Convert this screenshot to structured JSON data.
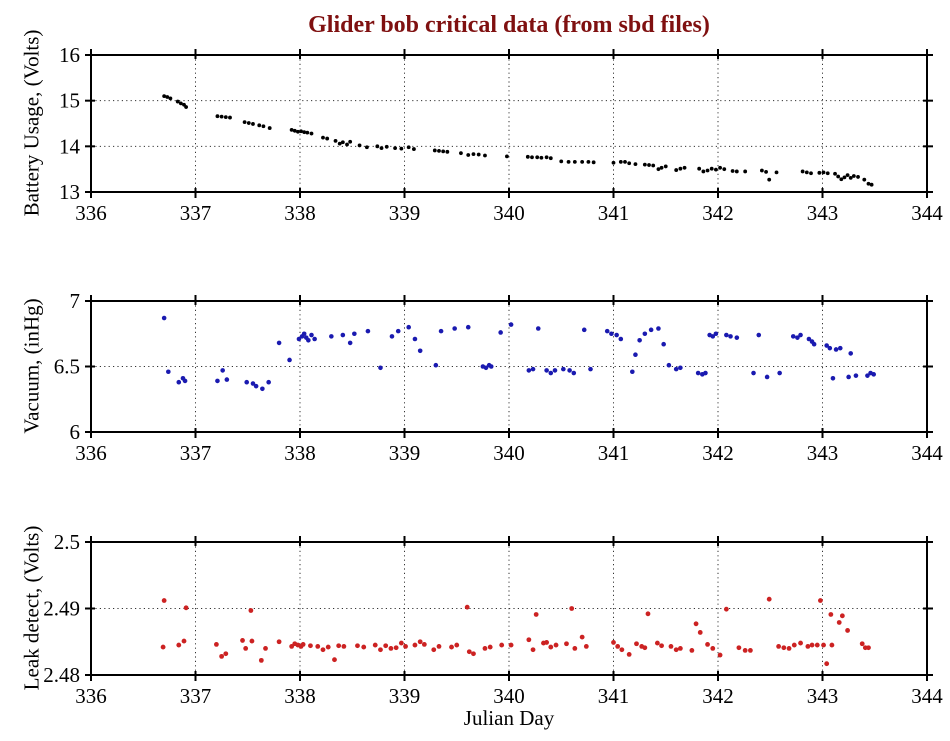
{
  "title": {
    "text": "Glider bob critical data (from sbd files)",
    "color": "#7f1010"
  },
  "xlabel": "Julian Day",
  "axis_color": "#000000",
  "grid_color": "#333333",
  "chart_data": [
    {
      "type": "scatter",
      "name": "battery-usage",
      "ylabel": "Battery Usage, (Volts)",
      "xlim": [
        336,
        344
      ],
      "ylim": [
        13,
        16
      ],
      "xticks": [
        336,
        337,
        338,
        339,
        340,
        341,
        342,
        343,
        344
      ],
      "xtick_labels": [
        "336",
        "337",
        "338",
        "339",
        "340",
        "341",
        "342",
        "343",
        "344"
      ],
      "yticks": [
        13,
        14,
        15,
        16
      ],
      "ytick_labels": [
        "13",
        "14",
        "15",
        "16"
      ],
      "grid": "dotted",
      "color": "#000000",
      "marker_radius": 1.9,
      "points": [
        [
          336.7,
          15.1
        ],
        [
          336.73,
          15.08
        ],
        [
          336.76,
          15.05
        ],
        [
          336.83,
          14.98
        ],
        [
          336.86,
          14.94
        ],
        [
          336.89,
          14.91
        ],
        [
          336.91,
          14.86
        ],
        [
          337.21,
          14.66
        ],
        [
          337.25,
          14.65
        ],
        [
          337.29,
          14.64
        ],
        [
          337.33,
          14.63
        ],
        [
          337.47,
          14.53
        ],
        [
          337.51,
          14.51
        ],
        [
          337.55,
          14.49
        ],
        [
          337.61,
          14.46
        ],
        [
          337.65,
          14.44
        ],
        [
          337.71,
          14.4
        ],
        [
          337.92,
          14.36
        ],
        [
          337.95,
          14.34
        ],
        [
          337.98,
          14.32
        ],
        [
          338.01,
          14.33
        ],
        [
          338.04,
          14.31
        ],
        [
          338.07,
          14.3
        ],
        [
          338.11,
          14.28
        ],
        [
          338.22,
          14.19
        ],
        [
          338.26,
          14.17
        ],
        [
          338.34,
          14.12
        ],
        [
          338.38,
          14.06
        ],
        [
          338.41,
          14.09
        ],
        [
          338.45,
          14.04
        ],
        [
          338.48,
          14.1
        ],
        [
          338.57,
          14.02
        ],
        [
          338.64,
          13.98
        ],
        [
          338.74,
          14.0
        ],
        [
          338.78,
          13.96
        ],
        [
          338.83,
          13.99
        ],
        [
          338.91,
          13.96
        ],
        [
          338.97,
          13.95
        ],
        [
          339.04,
          13.98
        ],
        [
          339.09,
          13.94
        ],
        [
          339.29,
          13.91
        ],
        [
          339.33,
          13.9
        ],
        [
          339.37,
          13.89
        ],
        [
          339.41,
          13.88
        ],
        [
          339.54,
          13.85
        ],
        [
          339.61,
          13.81
        ],
        [
          339.66,
          13.83
        ],
        [
          339.71,
          13.82
        ],
        [
          339.77,
          13.8
        ],
        [
          339.98,
          13.78
        ],
        [
          340.18,
          13.77
        ],
        [
          340.22,
          13.76
        ],
        [
          340.27,
          13.76
        ],
        [
          340.31,
          13.75
        ],
        [
          340.36,
          13.76
        ],
        [
          340.4,
          13.74
        ],
        [
          340.5,
          13.67
        ],
        [
          340.57,
          13.66
        ],
        [
          340.63,
          13.66
        ],
        [
          340.7,
          13.66
        ],
        [
          340.76,
          13.66
        ],
        [
          340.81,
          13.65
        ],
        [
          341.0,
          13.64
        ],
        [
          341.07,
          13.66
        ],
        [
          341.11,
          13.66
        ],
        [
          341.15,
          13.63
        ],
        [
          341.21,
          13.61
        ],
        [
          341.3,
          13.6
        ],
        [
          341.34,
          13.59
        ],
        [
          341.38,
          13.58
        ],
        [
          341.43,
          13.5
        ],
        [
          341.46,
          13.53
        ],
        [
          341.5,
          13.56
        ],
        [
          341.6,
          13.48
        ],
        [
          341.64,
          13.51
        ],
        [
          341.68,
          13.53
        ],
        [
          341.82,
          13.51
        ],
        [
          341.86,
          13.45
        ],
        [
          341.9,
          13.47
        ],
        [
          341.94,
          13.51
        ],
        [
          341.98,
          13.49
        ],
        [
          342.02,
          13.53
        ],
        [
          342.06,
          13.5
        ],
        [
          342.14,
          13.46
        ],
        [
          342.18,
          13.45
        ],
        [
          342.26,
          13.45
        ],
        [
          342.42,
          13.47
        ],
        [
          342.46,
          13.44
        ],
        [
          342.49,
          13.27
        ],
        [
          342.56,
          13.43
        ],
        [
          342.81,
          13.45
        ],
        [
          342.85,
          13.43
        ],
        [
          342.89,
          13.41
        ],
        [
          342.97,
          13.42
        ],
        [
          343.01,
          13.43
        ],
        [
          343.05,
          13.41
        ],
        [
          343.12,
          13.4
        ],
        [
          343.15,
          13.34
        ],
        [
          343.18,
          13.28
        ],
        [
          343.21,
          13.32
        ],
        [
          343.24,
          13.37
        ],
        [
          343.27,
          13.31
        ],
        [
          343.3,
          13.35
        ],
        [
          343.34,
          13.33
        ],
        [
          343.4,
          13.27
        ],
        [
          343.44,
          13.18
        ],
        [
          343.47,
          13.16
        ]
      ]
    },
    {
      "type": "scatter",
      "name": "vacuum",
      "ylabel": "Vacuum, (inHg)",
      "xlim": [
        336,
        344
      ],
      "ylim": [
        6,
        7
      ],
      "xticks": [
        336,
        337,
        338,
        339,
        340,
        341,
        342,
        343,
        344
      ],
      "xtick_labels": [
        "336",
        "337",
        "338",
        "339",
        "340",
        "341",
        "342",
        "343",
        "344"
      ],
      "yticks": [
        6,
        6.5,
        7
      ],
      "ytick_labels": [
        "6",
        "6.5",
        "7"
      ],
      "grid": "dotted",
      "color": "#1a1ab0",
      "marker_radius": 2.3,
      "points": [
        [
          336.7,
          6.87
        ],
        [
          336.74,
          6.46
        ],
        [
          336.84,
          6.38
        ],
        [
          336.88,
          6.41
        ],
        [
          336.9,
          6.39
        ],
        [
          337.21,
          6.39
        ],
        [
          337.26,
          6.47
        ],
        [
          337.3,
          6.4
        ],
        [
          337.49,
          6.38
        ],
        [
          337.55,
          6.37
        ],
        [
          337.58,
          6.35
        ],
        [
          337.64,
          6.33
        ],
        [
          337.7,
          6.38
        ],
        [
          337.8,
          6.68
        ],
        [
          337.9,
          6.55
        ],
        [
          337.99,
          6.71
        ],
        [
          338.02,
          6.73
        ],
        [
          338.04,
          6.75
        ],
        [
          338.06,
          6.72
        ],
        [
          338.08,
          6.7
        ],
        [
          338.11,
          6.74
        ],
        [
          338.14,
          6.71
        ],
        [
          338.3,
          6.73
        ],
        [
          338.41,
          6.74
        ],
        [
          338.48,
          6.68
        ],
        [
          338.52,
          6.75
        ],
        [
          338.65,
          6.77
        ],
        [
          338.77,
          6.49
        ],
        [
          338.88,
          6.73
        ],
        [
          338.94,
          6.77
        ],
        [
          339.04,
          6.8
        ],
        [
          339.1,
          6.71
        ],
        [
          339.15,
          6.62
        ],
        [
          339.3,
          6.51
        ],
        [
          339.35,
          6.77
        ],
        [
          339.48,
          6.79
        ],
        [
          339.61,
          6.8
        ],
        [
          339.75,
          6.5
        ],
        [
          339.78,
          6.49
        ],
        [
          339.81,
          6.51
        ],
        [
          339.83,
          6.5
        ],
        [
          339.92,
          6.76
        ],
        [
          340.02,
          6.82
        ],
        [
          340.19,
          6.47
        ],
        [
          340.23,
          6.48
        ],
        [
          340.28,
          6.79
        ],
        [
          340.36,
          6.47
        ],
        [
          340.4,
          6.45
        ],
        [
          340.44,
          6.47
        ],
        [
          340.52,
          6.48
        ],
        [
          340.58,
          6.47
        ],
        [
          340.62,
          6.45
        ],
        [
          340.72,
          6.78
        ],
        [
          340.78,
          6.48
        ],
        [
          340.94,
          6.77
        ],
        [
          340.98,
          6.75
        ],
        [
          341.03,
          6.74
        ],
        [
          341.07,
          6.71
        ],
        [
          341.18,
          6.46
        ],
        [
          341.21,
          6.59
        ],
        [
          341.25,
          6.7
        ],
        [
          341.3,
          6.75
        ],
        [
          341.36,
          6.78
        ],
        [
          341.43,
          6.79
        ],
        [
          341.48,
          6.67
        ],
        [
          341.53,
          6.51
        ],
        [
          341.6,
          6.48
        ],
        [
          341.64,
          6.49
        ],
        [
          341.81,
          6.45
        ],
        [
          341.85,
          6.44
        ],
        [
          341.88,
          6.45
        ],
        [
          341.92,
          6.74
        ],
        [
          341.95,
          6.73
        ],
        [
          341.98,
          6.75
        ],
        [
          342.08,
          6.74
        ],
        [
          342.12,
          6.73
        ],
        [
          342.18,
          6.72
        ],
        [
          342.34,
          6.45
        ],
        [
          342.39,
          6.74
        ],
        [
          342.47,
          6.42
        ],
        [
          342.59,
          6.45
        ],
        [
          342.72,
          6.73
        ],
        [
          342.76,
          6.72
        ],
        [
          342.79,
          6.74
        ],
        [
          342.87,
          6.71
        ],
        [
          342.9,
          6.69
        ],
        [
          342.92,
          6.67
        ],
        [
          343.04,
          6.66
        ],
        [
          343.07,
          6.64
        ],
        [
          343.1,
          6.41
        ],
        [
          343.13,
          6.63
        ],
        [
          343.17,
          6.64
        ],
        [
          343.25,
          6.42
        ],
        [
          343.27,
          6.6
        ],
        [
          343.32,
          6.43
        ],
        [
          343.43,
          6.43
        ],
        [
          343.46,
          6.45
        ],
        [
          343.49,
          6.44
        ]
      ]
    },
    {
      "type": "scatter",
      "name": "leak-detect",
      "ylabel": "Leak detect, (Volts)",
      "xlim": [
        336,
        344
      ],
      "ylim": [
        2.48,
        2.5
      ],
      "xticks": [
        336,
        337,
        338,
        339,
        340,
        341,
        342,
        343,
        344
      ],
      "xtick_labels": [
        "336",
        "337",
        "338",
        "339",
        "340",
        "341",
        "342",
        "343",
        "344"
      ],
      "yticks": [
        2.48,
        2.49,
        2.5
      ],
      "ytick_labels": [
        "2.48",
        "2.49",
        "2.5"
      ],
      "grid": "dotted",
      "color": "#cc2222",
      "marker_radius": 2.4,
      "points": [
        [
          336.69,
          2.4842
        ],
        [
          336.7,
          2.4912
        ],
        [
          336.84,
          2.4845
        ],
        [
          336.89,
          2.4851
        ],
        [
          336.91,
          2.4901
        ],
        [
          337.2,
          2.4846
        ],
        [
          337.25,
          2.4828
        ],
        [
          337.29,
          2.4832
        ],
        [
          337.45,
          2.4852
        ],
        [
          337.48,
          2.484
        ],
        [
          337.53,
          2.4897
        ],
        [
          337.54,
          2.4851
        ],
        [
          337.63,
          2.4822
        ],
        [
          337.67,
          2.484
        ],
        [
          337.8,
          2.485
        ],
        [
          337.92,
          2.4843
        ],
        [
          337.95,
          2.4847
        ],
        [
          337.98,
          2.4845
        ],
        [
          338.01,
          2.4843
        ],
        [
          338.03,
          2.4846
        ],
        [
          338.1,
          2.4844
        ],
        [
          338.17,
          2.4843
        ],
        [
          338.22,
          2.4838
        ],
        [
          338.27,
          2.4842
        ],
        [
          338.33,
          2.4823
        ],
        [
          338.37,
          2.4844
        ],
        [
          338.42,
          2.4843
        ],
        [
          338.55,
          2.4844
        ],
        [
          338.61,
          2.4842
        ],
        [
          338.72,
          2.4845
        ],
        [
          338.77,
          2.4838
        ],
        [
          338.82,
          2.4844
        ],
        [
          338.87,
          2.484
        ],
        [
          338.92,
          2.4841
        ],
        [
          338.97,
          2.4848
        ],
        [
          339.01,
          2.4843
        ],
        [
          339.1,
          2.4845
        ],
        [
          339.15,
          2.485
        ],
        [
          339.19,
          2.4846
        ],
        [
          339.28,
          2.4838
        ],
        [
          339.33,
          2.4843
        ],
        [
          339.45,
          2.4842
        ],
        [
          339.5,
          2.4845
        ],
        [
          339.6,
          2.4902
        ],
        [
          339.62,
          2.4835
        ],
        [
          339.66,
          2.4832
        ],
        [
          339.77,
          2.484
        ],
        [
          339.82,
          2.4842
        ],
        [
          339.93,
          2.4845
        ],
        [
          340.02,
          2.4845
        ],
        [
          340.19,
          2.4853
        ],
        [
          340.23,
          2.4838
        ],
        [
          340.26,
          2.4891
        ],
        [
          340.33,
          2.4848
        ],
        [
          340.36,
          2.4849
        ],
        [
          340.4,
          2.4842
        ],
        [
          340.45,
          2.4845
        ],
        [
          340.55,
          2.4847
        ],
        [
          340.6,
          2.49
        ],
        [
          340.63,
          2.484
        ],
        [
          340.7,
          2.4857
        ],
        [
          340.74,
          2.4843
        ],
        [
          341.0,
          2.4849
        ],
        [
          341.04,
          2.4843
        ],
        [
          341.08,
          2.4838
        ],
        [
          341.15,
          2.4831
        ],
        [
          341.22,
          2.4847
        ],
        [
          341.27,
          2.4843
        ],
        [
          341.3,
          2.4841
        ],
        [
          341.33,
          2.4892
        ],
        [
          341.42,
          2.4848
        ],
        [
          341.46,
          2.4844
        ],
        [
          341.55,
          2.4843
        ],
        [
          341.6,
          2.4838
        ],
        [
          341.64,
          2.484
        ],
        [
          341.75,
          2.4837
        ],
        [
          341.79,
          2.4877
        ],
        [
          341.83,
          2.4864
        ],
        [
          341.9,
          2.4846
        ],
        [
          341.95,
          2.484
        ],
        [
          342.02,
          2.483
        ],
        [
          342.08,
          2.4899
        ],
        [
          342.2,
          2.4841
        ],
        [
          342.26,
          2.4837
        ],
        [
          342.31,
          2.4837
        ],
        [
          342.49,
          2.4914
        ],
        [
          342.58,
          2.4843
        ],
        [
          342.63,
          2.4841
        ],
        [
          342.68,
          2.484
        ],
        [
          342.73,
          2.4845
        ],
        [
          342.79,
          2.4848
        ],
        [
          342.86,
          2.4843
        ],
        [
          342.9,
          2.4845
        ],
        [
          342.95,
          2.4845
        ],
        [
          342.98,
          2.4912
        ],
        [
          343.01,
          2.4845
        ],
        [
          343.04,
          2.4817
        ],
        [
          343.08,
          2.4891
        ],
        [
          343.09,
          2.4845
        ],
        [
          343.16,
          2.4879
        ],
        [
          343.19,
          2.4889
        ],
        [
          343.24,
          2.4867
        ],
        [
          343.38,
          2.4847
        ],
        [
          343.41,
          2.4841
        ],
        [
          343.44,
          2.4841
        ]
      ]
    }
  ]
}
